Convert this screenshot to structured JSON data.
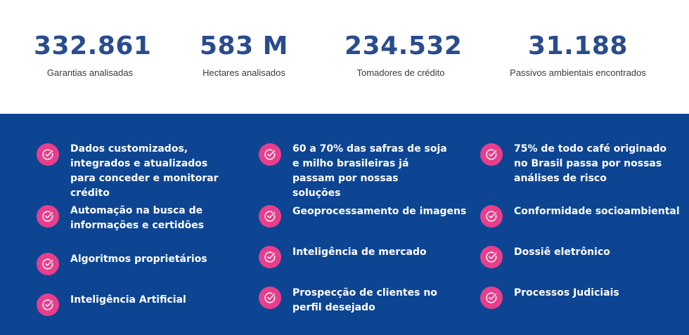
{
  "stats": [
    {
      "value": "332.861",
      "label": "Garantias analisadas"
    },
    {
      "value": "583 M",
      "label": "Hectares analisados"
    },
    {
      "value": "234.532",
      "label": "Tomadores de crédito"
    },
    {
      "value": "31.188",
      "label": "Passivos ambientais encontrados"
    }
  ],
  "features": {
    "col1": [
      "Dados customizados, integrados e atualizados para conceder e monitorar crédito",
      "Automação na busca de informações e certidões",
      "Algoritmos proprietários",
      "Inteligência Artificial"
    ],
    "col2": [
      "60 a 70% das safras de soja e milho brasileiras já passam por nossas soluções",
      "Geoprocessamento de imagens",
      "Inteligência de mercado",
      "Prospecção de clientes no perfil desejado"
    ],
    "col3": [
      "75% de todo café originado no Brasil passa por nossas análises de risco",
      "Conformidade socioambiental",
      "Dossiê eletrônico",
      "Processos Judiciais"
    ]
  },
  "colors": {
    "primary": "#2a4c8e",
    "band": "#0d4593",
    "accent": "#e83e8c"
  },
  "icon": "check-circle-icon"
}
